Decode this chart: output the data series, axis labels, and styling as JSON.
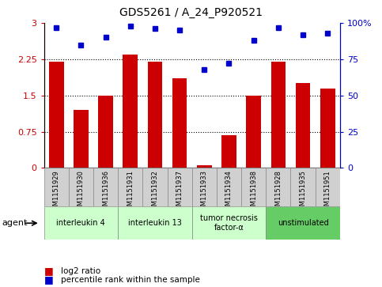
{
  "title": "GDS5261 / A_24_P920521",
  "samples": [
    "GSM1151929",
    "GSM1151930",
    "GSM1151936",
    "GSM1151931",
    "GSM1151932",
    "GSM1151937",
    "GSM1151933",
    "GSM1151934",
    "GSM1151938",
    "GSM1151928",
    "GSM1151935",
    "GSM1151951"
  ],
  "log2_ratio": [
    2.2,
    1.2,
    1.5,
    2.35,
    2.2,
    1.85,
    0.05,
    0.68,
    1.5,
    2.2,
    1.75,
    1.65
  ],
  "percentile": [
    97,
    85,
    90,
    98,
    96,
    95,
    68,
    72,
    88,
    97,
    92,
    93
  ],
  "bar_color": "#cc0000",
  "dot_color": "#0000cc",
  "ylim_left": [
    0,
    3
  ],
  "ylim_right": [
    0,
    100
  ],
  "yticks_left": [
    0,
    0.75,
    1.5,
    2.25,
    3
  ],
  "yticks_right": [
    0,
    25,
    50,
    75,
    100
  ],
  "ytick_labels_left": [
    "0",
    "0.75",
    "1.5",
    "2.25",
    "3"
  ],
  "ytick_labels_right": [
    "0",
    "25",
    "50",
    "75",
    "100%"
  ],
  "hlines": [
    0.75,
    1.5,
    2.25
  ],
  "groups": [
    {
      "label": "interleukin 4",
      "start": 0,
      "end": 3,
      "color": "#ccffcc"
    },
    {
      "label": "interleukin 13",
      "start": 3,
      "end": 6,
      "color": "#ccffcc"
    },
    {
      "label": "tumor necrosis\nfactor-α",
      "start": 6,
      "end": 9,
      "color": "#ccffcc"
    },
    {
      "label": "unstimulated",
      "start": 9,
      "end": 12,
      "color": "#66cc66"
    }
  ],
  "legend_bar_label": "log2 ratio",
  "legend_dot_label": "percentile rank within the sample",
  "agent_label": "agent",
  "bg_color_tick": "#d0d0d0",
  "bar_width": 0.6
}
